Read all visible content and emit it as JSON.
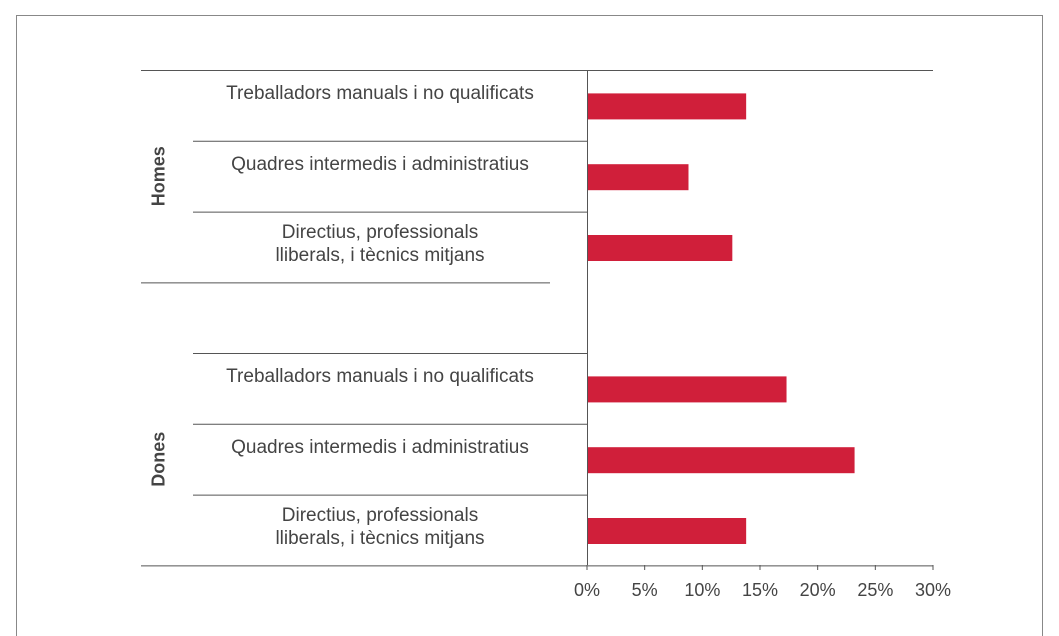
{
  "chart_data": {
    "type": "bar",
    "orientation": "horizontal",
    "color": "#d01f3a",
    "groups": [
      {
        "label": "Homes",
        "categories": [
          "Treballadors manuals i no qualificats",
          "Quadres intermedis i administratius",
          "Directius, professionals\nlliberals, i tècnics mitjans"
        ],
        "values": [
          13.8,
          8.8,
          12.6
        ]
      },
      {
        "label": "Dones",
        "categories": [
          "Treballadors manuals i no qualificats",
          "Quadres intermedis i administratius",
          "Directius, professionals\nlliberals, i tècnics mitjans"
        ],
        "values": [
          17.3,
          23.2,
          13.8
        ]
      }
    ],
    "xlim": [
      0,
      30
    ],
    "xticks": [
      {
        "value": 0,
        "label": "0%"
      },
      {
        "value": 5,
        "label": "5%"
      },
      {
        "value": 10,
        "label": "10%"
      },
      {
        "value": 15,
        "label": "15%"
      },
      {
        "value": 20,
        "label": "20%"
      },
      {
        "value": 25,
        "label": "25%"
      },
      {
        "value": 30,
        "label": "30%"
      }
    ]
  }
}
